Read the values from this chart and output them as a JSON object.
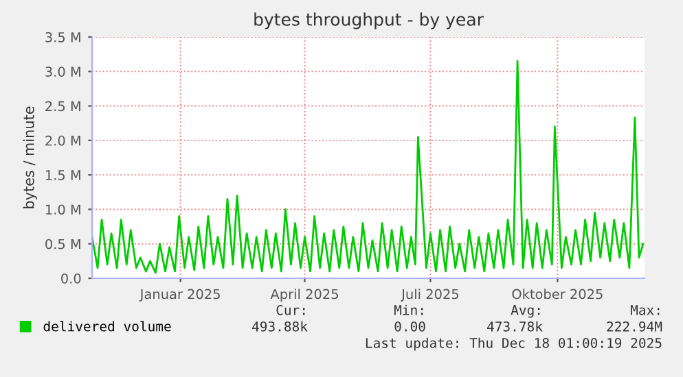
{
  "chart_data": {
    "type": "line",
    "title": "bytes throughput - by year",
    "ylabel": "bytes / minute",
    "x": [
      "2024-11-13",
      "2024-11-17",
      "2024-11-20",
      "2024-11-24",
      "2024-11-27",
      "2024-12-01",
      "2024-12-04",
      "2024-12-08",
      "2024-12-11",
      "2024-12-15",
      "2024-12-18",
      "2024-12-22",
      "2024-12-25",
      "2024-12-29",
      "2025-01-01",
      "2025-01-05",
      "2025-01-08",
      "2025-01-12",
      "2025-01-15",
      "2025-01-19",
      "2025-01-22",
      "2025-01-26",
      "2025-01-29",
      "2025-02-02",
      "2025-02-05",
      "2025-02-09",
      "2025-02-12",
      "2025-02-16",
      "2025-02-19",
      "2025-02-23",
      "2025-02-26",
      "2025-03-02",
      "2025-03-05",
      "2025-03-09",
      "2025-03-12",
      "2025-03-16",
      "2025-03-19",
      "2025-03-23",
      "2025-03-26",
      "2025-03-30",
      "2025-04-02",
      "2025-04-06",
      "2025-04-09",
      "2025-04-13",
      "2025-04-16",
      "2025-04-20",
      "2025-04-23",
      "2025-04-27",
      "2025-04-30",
      "2025-05-04",
      "2025-05-07",
      "2025-05-11",
      "2025-05-14",
      "2025-05-18",
      "2025-05-21",
      "2025-05-25",
      "2025-05-28",
      "2025-06-01",
      "2025-06-04",
      "2025-06-08",
      "2025-06-11",
      "2025-06-15",
      "2025-06-18",
      "2025-06-22",
      "2025-06-25",
      "2025-06-29",
      "2025-07-02",
      "2025-07-05",
      "2025-07-07",
      "2025-07-13",
      "2025-07-16",
      "2025-07-20",
      "2025-07-23",
      "2025-07-27",
      "2025-07-30",
      "2025-08-03",
      "2025-08-06",
      "2025-08-10",
      "2025-08-13",
      "2025-08-17",
      "2025-08-20",
      "2025-08-24",
      "2025-08-27",
      "2025-08-31",
      "2025-09-03",
      "2025-09-07",
      "2025-09-10",
      "2025-09-14",
      "2025-09-17",
      "2025-09-21",
      "2025-09-24",
      "2025-09-28",
      "2025-10-01",
      "2025-10-05",
      "2025-10-08",
      "2025-10-12",
      "2025-10-14",
      "2025-10-19",
      "2025-10-22",
      "2025-10-26",
      "2025-10-29",
      "2025-11-02",
      "2025-11-05",
      "2025-11-09",
      "2025-11-12",
      "2025-11-16",
      "2025-11-19",
      "2025-11-23",
      "2025-11-26",
      "2025-11-30",
      "2025-12-03",
      "2025-12-07",
      "2025-12-11",
      "2025-12-14",
      "2025-12-17"
    ],
    "series": [
      {
        "name": "delivered volume",
        "color": "#00cc00",
        "values": [
          0.6,
          0.15,
          0.85,
          0.2,
          0.65,
          0.15,
          0.85,
          0.2,
          0.7,
          0.15,
          0.3,
          0.1,
          0.25,
          0.08,
          0.5,
          0.1,
          0.45,
          0.1,
          0.9,
          0.15,
          0.6,
          0.12,
          0.75,
          0.15,
          0.9,
          0.2,
          0.6,
          0.15,
          1.15,
          0.2,
          1.2,
          0.15,
          0.65,
          0.15,
          0.6,
          0.1,
          0.7,
          0.15,
          0.65,
          0.1,
          1.0,
          0.2,
          0.8,
          0.15,
          0.6,
          0.1,
          0.9,
          0.15,
          0.65,
          0.1,
          0.7,
          0.15,
          0.75,
          0.15,
          0.6,
          0.1,
          0.8,
          0.15,
          0.55,
          0.1,
          0.8,
          0.15,
          0.7,
          0.1,
          0.75,
          0.15,
          0.6,
          0.2,
          2.05,
          0.15,
          0.65,
          0.1,
          0.7,
          0.1,
          0.75,
          0.15,
          0.5,
          0.1,
          0.7,
          0.15,
          0.6,
          0.1,
          0.65,
          0.15,
          0.7,
          0.15,
          0.85,
          0.2,
          3.15,
          0.15,
          0.85,
          0.15,
          0.8,
          0.15,
          0.7,
          0.2,
          2.2,
          0.15,
          0.6,
          0.2,
          0.7,
          0.2,
          0.85,
          0.25,
          0.95,
          0.3,
          0.8,
          0.25,
          0.85,
          0.3,
          0.8,
          0.15,
          2.33,
          0.3,
          0.5
        ]
      }
    ],
    "xlim": [
      "2024-11-13",
      "2025-12-18"
    ],
    "xticks": [
      {
        "value": "2025-01-16",
        "label": "Januar 2025"
      },
      {
        "value": "2025-04-16",
        "label": "April 2025"
      },
      {
        "value": "2025-07-16",
        "label": "Juli 2025"
      },
      {
        "value": "2025-10-16",
        "label": "Oktober 2025"
      }
    ],
    "ylim": [
      0,
      3.5
    ],
    "yticks": [
      {
        "value": 0,
        "label": "0.0"
      },
      {
        "value": 0.5,
        "label": "0.5 M"
      },
      {
        "value": 1.0,
        "label": "1.0 M"
      },
      {
        "value": 1.5,
        "label": "1.5 M"
      },
      {
        "value": 2.0,
        "label": "2.0 M"
      },
      {
        "value": 2.5,
        "label": "2.5 M"
      },
      {
        "value": 3.0,
        "label": "3.0 M"
      },
      {
        "value": 3.5,
        "label": "3.5 M"
      }
    ],
    "grid": true,
    "legend": "bottom left",
    "annotations": [
      "Cur:",
      "Min:",
      "Avg:",
      "Max:",
      "493.88k",
      "0.00",
      "473.78k",
      "222.94M",
      "Last update: Thu Dec 18 01:00:19 2025"
    ]
  }
}
